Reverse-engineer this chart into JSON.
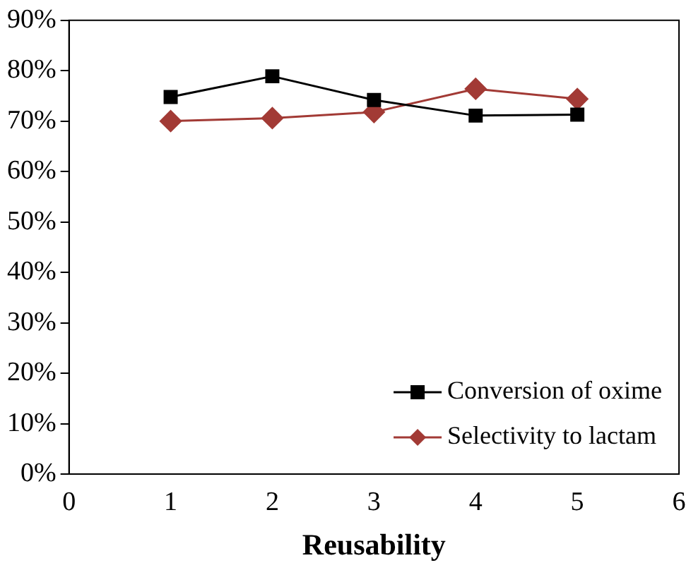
{
  "chart_data": {
    "type": "line",
    "xlabel": "Reusability",
    "x": [
      1,
      2,
      3,
      4,
      5
    ],
    "series": [
      {
        "name": "Conversion of oxime",
        "color": "#000000",
        "marker": "square",
        "values": [
          74.8,
          78.9,
          74.2,
          71.1,
          71.3
        ]
      },
      {
        "name": "Selectivity to lactam",
        "color": "#a23a35",
        "marker": "diamond",
        "values": [
          70,
          70.6,
          71.8,
          76.4,
          74.4
        ]
      }
    ],
    "xlim": [
      0,
      6
    ],
    "xticks": [
      0,
      1,
      2,
      3,
      4,
      5,
      6
    ],
    "ylim": [
      0,
      90
    ],
    "yticks": [
      {
        "value": 0,
        "label": "0%"
      },
      {
        "value": 10,
        "label": "10%"
      },
      {
        "value": 20,
        "label": "20%"
      },
      {
        "value": 30,
        "label": "30%"
      },
      {
        "value": 40,
        "label": "40%"
      },
      {
        "value": 50,
        "label": "50%"
      },
      {
        "value": 60,
        "label": "60%"
      },
      {
        "value": 70,
        "label": "70%"
      },
      {
        "value": 80,
        "label": "80%"
      },
      {
        "value": 90,
        "label": "90%"
      }
    ],
    "grid": false,
    "legend": "bottom right"
  }
}
